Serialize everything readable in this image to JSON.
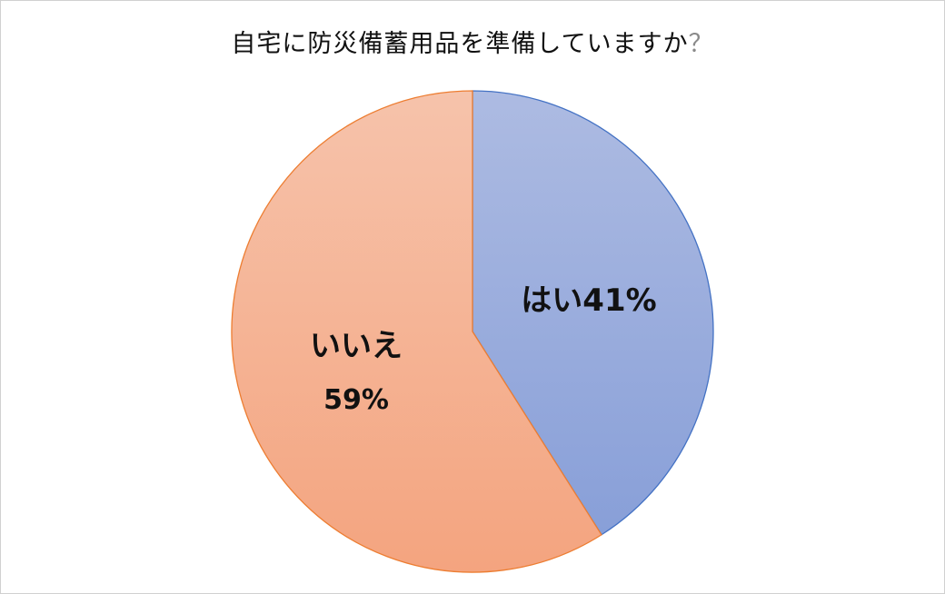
{
  "chart_data": {
    "type": "pie",
    "title": "自宅に防災備蓄用品を準備していますか",
    "title_mark": "？",
    "slices": [
      {
        "label": "はい",
        "value": 41,
        "value_label": "41%",
        "color": "#9aaede",
        "border": "#4472c4"
      },
      {
        "label": "いいえ",
        "value": 59,
        "value_label": "59%",
        "color": "#f5b296",
        "border": "#ed7d31"
      }
    ],
    "start_angle": "12 o'clock",
    "direction": "clockwise"
  }
}
